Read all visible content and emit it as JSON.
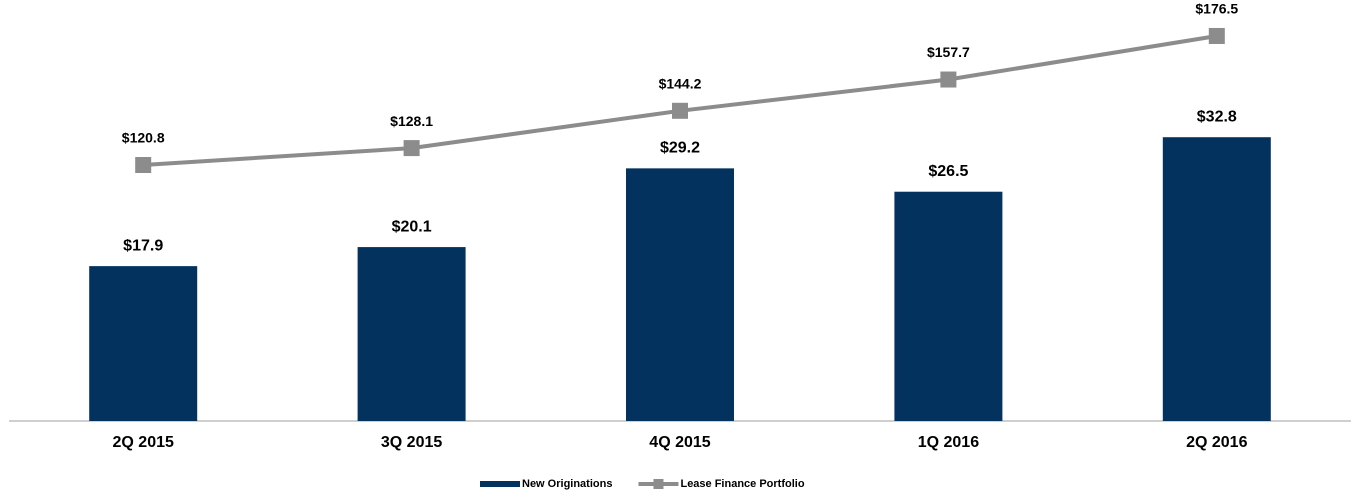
{
  "chart_data": {
    "type": "bar-line",
    "categories": [
      "2Q 2015",
      "3Q 2015",
      "4Q 2015",
      "1Q 2016",
      "2Q 2016"
    ],
    "series": [
      {
        "name": "New Originations",
        "type": "bar",
        "color": "#03325f",
        "values": [
          17.9,
          20.1,
          29.2,
          26.5,
          32.8
        ],
        "value_labels": [
          "$17.9",
          "$20.1",
          "$29.2",
          "$26.5",
          "$32.8"
        ]
      },
      {
        "name": "Lease Finance Portfolio",
        "type": "line",
        "axis": "y2",
        "color": "#8c8c8c",
        "values": [
          120.8,
          128.1,
          144.2,
          157.7,
          176.5
        ],
        "value_labels": [
          "$120.8",
          "$128.1",
          "$144.2",
          "$157.7",
          "$176.5"
        ]
      }
    ],
    "ylim": [
      0,
      46
    ],
    "y2lim": [
      10.3,
      182.1
    ],
    "legend": "bottom"
  }
}
